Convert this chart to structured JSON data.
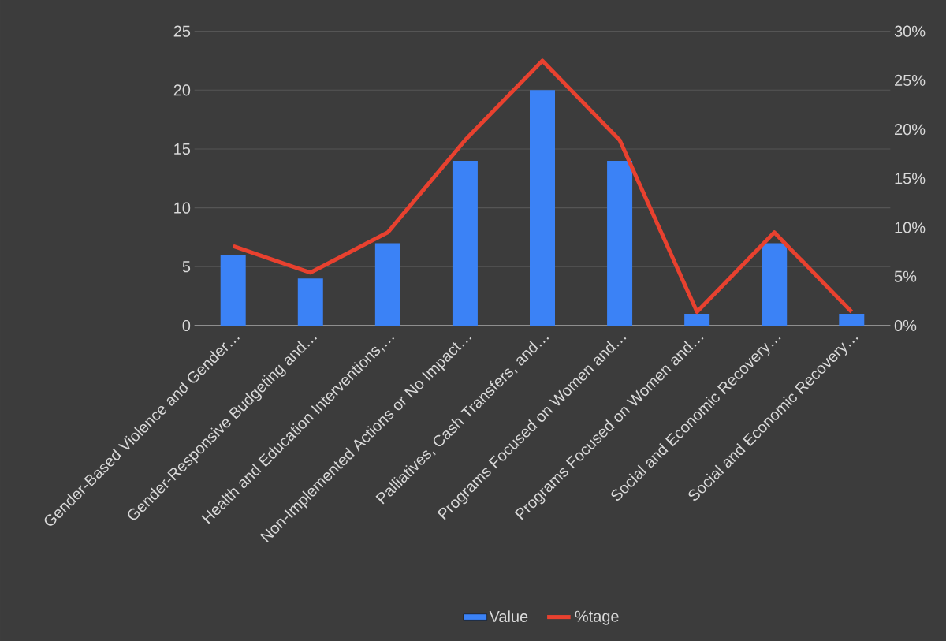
{
  "chart_data": {
    "type": "bar",
    "categories": [
      "Gender-Based Violence and Gender…",
      "Gender-Responsive Budgeting and…",
      "Health and Education Interventions,…",
      "Non-Implemented Actions or No Impact…",
      "Palliatives, Cash Transfers, and…",
      "Programs Focused on Women and…",
      "Programs Focused on Women and…",
      "Social and Economic Recovery…",
      "Social and Economic Recovery…"
    ],
    "series": [
      {
        "name": "Value",
        "color": "#3b82f6",
        "values": [
          6,
          4,
          7,
          14,
          20,
          14,
          1,
          7,
          1
        ]
      },
      {
        "name": "%tage",
        "type": "line",
        "axis": "y2",
        "color": "#e8412f",
        "values": [
          8.1,
          5.4,
          9.5,
          18.9,
          27.0,
          18.9,
          1.4,
          9.5,
          1.4
        ]
      }
    ],
    "ylim": [
      0,
      25
    ],
    "yticks": [
      0,
      5,
      10,
      15,
      20,
      25
    ],
    "y2lim": [
      0,
      30
    ],
    "y2ticks": [
      {
        "value": 0,
        "label": "0%"
      },
      {
        "value": 5,
        "label": "5%"
      },
      {
        "value": 10,
        "label": "10%"
      },
      {
        "value": 15,
        "label": "15%"
      },
      {
        "value": 20,
        "label": "20%"
      },
      {
        "value": 25,
        "label": "25%"
      },
      {
        "value": 30,
        "label": "30%"
      }
    ],
    "grid": "y",
    "legend": "bottom"
  }
}
